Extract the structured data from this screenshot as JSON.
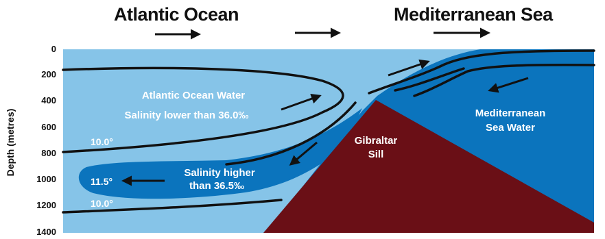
{
  "headers": {
    "left": "Atlantic Ocean",
    "right": "Mediterranean Sea"
  },
  "y_axis": {
    "label": "Depth (metres)",
    "ticks": [
      "0",
      "200",
      "400",
      "600",
      "800",
      "1000",
      "1200",
      "1400"
    ]
  },
  "labels": {
    "atlantic_water_line1": "Atlantic Ocean Water",
    "atlantic_water_line2": "Salinity lower than 36.0‰",
    "temp_upper": "10.0°",
    "temp_core": "11.5°",
    "temp_lower": "10.0°",
    "salinity_high_line1": "Salinity higher",
    "salinity_high_line2": "than 36.5‰",
    "sill_line1": "Gibraltar",
    "sill_line2": "Sill",
    "med_water_line1": "Mediterranean",
    "med_water_line2": "Sea Water"
  },
  "colors": {
    "atlantic_water": "#86c4e8",
    "mediterranean_water": "#0b74bd",
    "sill": "#6a0f16",
    "flow_lines": "#111111",
    "label_text": "#ffffff"
  }
}
